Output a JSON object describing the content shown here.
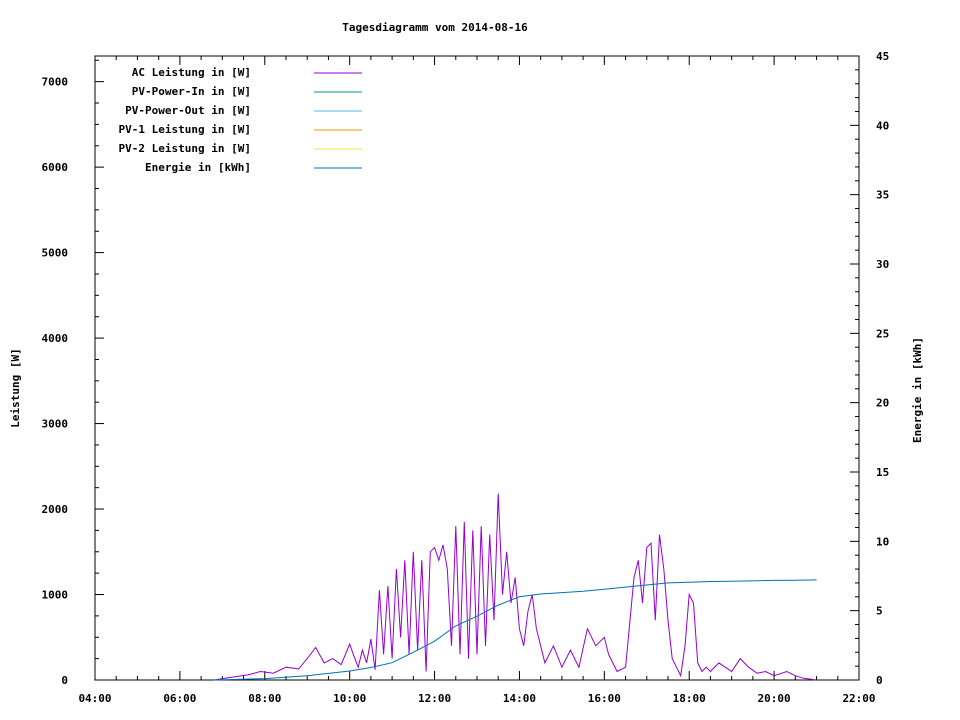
{
  "chart_data": {
    "type": "line",
    "title": "Tagesdiagramm vom 2014-08-16",
    "ylabel": "Leistung [W]",
    "y2label": "Energie in [kWh]",
    "xlim": [
      4,
      22
    ],
    "ylim": [
      0,
      7300
    ],
    "y2lim": [
      0,
      45
    ],
    "x_ticks": [
      "04:00",
      "06:00",
      "08:00",
      "10:00",
      "12:00",
      "14:00",
      "16:00",
      "18:00",
      "20:00",
      "22:00"
    ],
    "y_ticks": [
      "0",
      "1000",
      "2000",
      "3000",
      "4000",
      "5000",
      "6000",
      "7000"
    ],
    "y2_ticks": [
      "0",
      "5",
      "10",
      "15",
      "20",
      "25",
      "30",
      "35",
      "40",
      "45"
    ],
    "legend_placement": "top-left",
    "grid": false,
    "series": [
      {
        "name": "AC Leistung in [W]",
        "color": "#9400d3",
        "axis": "y",
        "x": [
          6.8,
          7.2,
          7.6,
          7.9,
          8.2,
          8.5,
          8.8,
          9.0,
          9.2,
          9.4,
          9.6,
          9.8,
          10.0,
          10.1,
          10.2,
          10.3,
          10.4,
          10.5,
          10.6,
          10.7,
          10.8,
          10.9,
          11.0,
          11.1,
          11.2,
          11.3,
          11.4,
          11.5,
          11.6,
          11.7,
          11.8,
          11.9,
          12.0,
          12.1,
          12.2,
          12.3,
          12.4,
          12.5,
          12.6,
          12.7,
          12.8,
          12.9,
          13.0,
          13.1,
          13.2,
          13.3,
          13.4,
          13.5,
          13.6,
          13.7,
          13.8,
          13.9,
          14.0,
          14.1,
          14.2,
          14.3,
          14.4,
          14.6,
          14.8,
          15.0,
          15.2,
          15.4,
          15.6,
          15.8,
          16.0,
          16.1,
          16.3,
          16.5,
          16.7,
          16.8,
          16.9,
          17.0,
          17.1,
          17.2,
          17.3,
          17.4,
          17.5,
          17.6,
          17.7,
          17.8,
          17.9,
          18.0,
          18.1,
          18.2,
          18.3,
          18.4,
          18.5,
          18.7,
          19.0,
          19.2,
          19.4,
          19.6,
          19.8,
          20.0,
          20.3,
          20.5,
          20.7,
          21.0
        ],
        "values": [
          0,
          30,
          60,
          100,
          80,
          150,
          130,
          250,
          380,
          200,
          250,
          180,
          420,
          280,
          150,
          350,
          200,
          480,
          120,
          1050,
          300,
          1100,
          250,
          1300,
          500,
          1400,
          300,
          1500,
          350,
          1400,
          100,
          1500,
          1550,
          1400,
          1580,
          1300,
          400,
          1800,
          300,
          1850,
          250,
          1750,
          300,
          1800,
          400,
          1700,
          700,
          2180,
          1000,
          1500,
          900,
          1200,
          600,
          400,
          800,
          1000,
          600,
          200,
          400,
          150,
          350,
          150,
          600,
          400,
          500,
          300,
          100,
          150,
          1200,
          1400,
          900,
          1550,
          1600,
          700,
          1700,
          1300,
          700,
          250,
          150,
          50,
          400,
          1000,
          900,
          200,
          100,
          150,
          100,
          200,
          100,
          250,
          150,
          80,
          100,
          50,
          100,
          50,
          20,
          0
        ]
      },
      {
        "name": "PV-Power-In in [W]",
        "color": "#009e73",
        "axis": "y",
        "x": [],
        "values": []
      },
      {
        "name": "PV-Power-Out in [W]",
        "color": "#56b4e9",
        "axis": "y",
        "x": [],
        "values": []
      },
      {
        "name": "PV-1 Leistung in [W]",
        "color": "#e69f00",
        "axis": "y",
        "x": [],
        "values": []
      },
      {
        "name": "PV-2 Leistung in [W]",
        "color": "#f0e442",
        "axis": "y",
        "x": [],
        "values": []
      },
      {
        "name": "Energie in [kWh]",
        "color": "#0072b2",
        "axis": "y2",
        "x": [
          6.8,
          8.0,
          9.0,
          10.0,
          10.5,
          11.0,
          11.5,
          12.0,
          12.5,
          13.0,
          13.5,
          14.0,
          14.5,
          15.0,
          15.5,
          16.0,
          16.5,
          17.0,
          17.5,
          18.0,
          18.5,
          19.0,
          19.5,
          20.0,
          20.5,
          21.0
        ],
        "values": [
          0,
          0.1,
          0.3,
          0.65,
          0.9,
          1.25,
          2.0,
          2.8,
          3.9,
          4.6,
          5.4,
          6.0,
          6.2,
          6.3,
          6.4,
          6.55,
          6.7,
          6.85,
          7.0,
          7.05,
          7.1,
          7.12,
          7.15,
          7.18,
          7.2,
          7.22
        ]
      }
    ]
  }
}
